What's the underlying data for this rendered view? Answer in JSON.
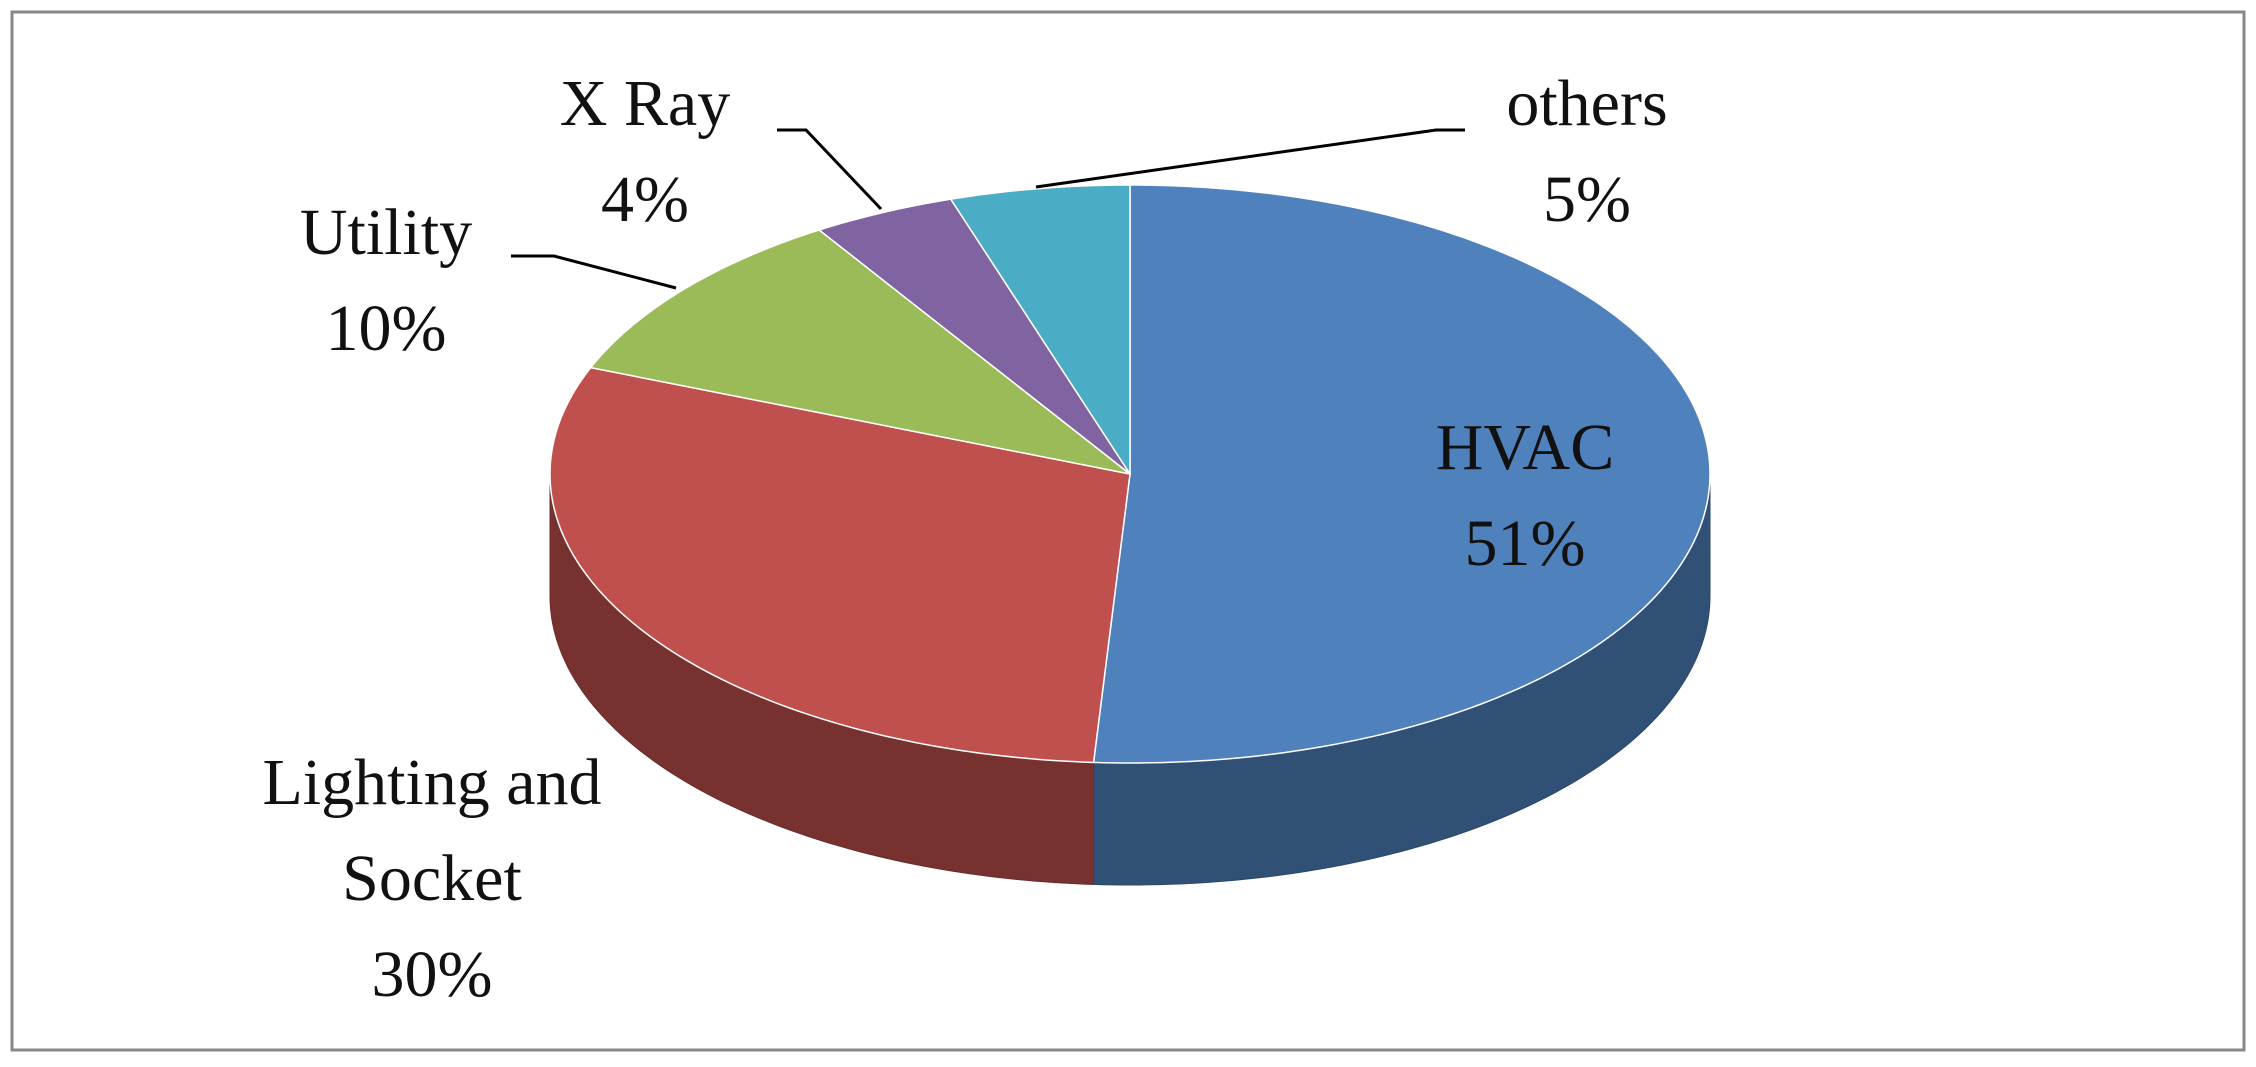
{
  "chart_data": {
    "type": "pie3d",
    "categories": [
      "HVAC",
      "Lighting and Socket",
      "Utility",
      "X Ray",
      "others"
    ],
    "values": [
      51,
      30,
      10,
      4,
      5
    ],
    "value_labels": [
      "51%",
      "30%",
      "10%",
      "4%",
      "5%"
    ],
    "colors": [
      "#4f81bd",
      "#c0504d",
      "#9bbb59",
      "#8064a2",
      "#4bacc6"
    ]
  }
}
